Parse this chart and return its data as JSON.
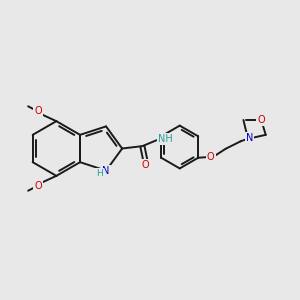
{
  "bg_color": "#e8e8e8",
  "bond_color": "#1a1a1a",
  "bond_width": 1.4,
  "heteroatom_colors": {
    "O": "#cc0000",
    "N": "#0000cc",
    "H": "#20a0a0"
  },
  "figsize": [
    3.0,
    3.0
  ],
  "dpi": 100
}
